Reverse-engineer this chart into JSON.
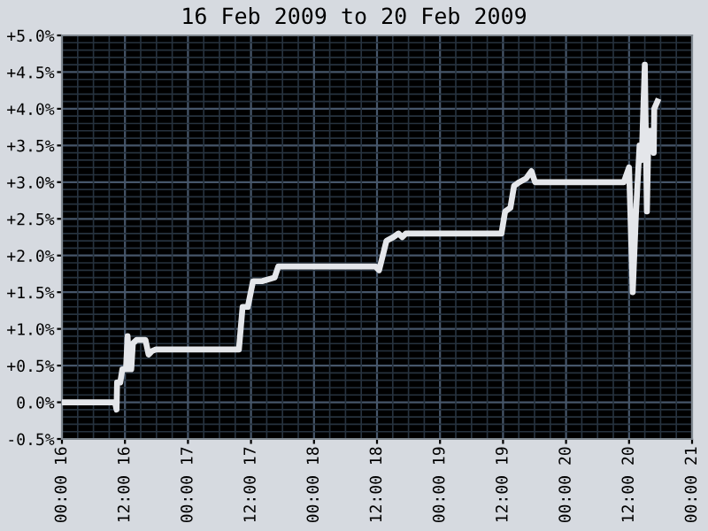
{
  "chart_data": {
    "type": "line",
    "title": "16 Feb 2009 to 20 Feb 2009",
    "x": [
      "2009-02-16T00:00",
      "2009-02-16T10:06",
      "2009-02-16T10:24",
      "2009-02-16T10:30",
      "2009-02-16T11:06",
      "2009-02-16T11:30",
      "2009-02-16T12:12",
      "2009-02-16T12:30",
      "2009-02-16T12:48",
      "2009-02-16T13:12",
      "2009-02-16T13:30",
      "2009-02-16T14:12",
      "2009-02-16T15:54",
      "2009-02-16T16:30",
      "2009-02-16T17:12",
      "2009-02-16T17:54",
      "2009-02-17T09:42",
      "2009-02-17T10:24",
      "2009-02-17T11:24",
      "2009-02-17T12:06",
      "2009-02-17T12:24",
      "2009-02-17T14:06",
      "2009-02-17T16:30",
      "2009-02-17T17:12",
      "2009-02-18T11:42",
      "2009-02-18T12:24",
      "2009-02-18T13:06",
      "2009-02-18T13:48",
      "2009-02-18T15:06",
      "2009-02-18T16:06",
      "2009-02-18T16:48",
      "2009-02-18T17:30",
      "2009-02-19T11:42",
      "2009-02-19T12:24",
      "2009-02-19T13:24",
      "2009-02-19T14:06",
      "2009-02-19T15:06",
      "2009-02-19T16:24",
      "2009-02-19T17:24",
      "2009-02-19T18:06",
      "2009-02-20T11:00",
      "2009-02-20T12:00",
      "2009-02-20T12:42",
      "2009-02-20T13:18",
      "2009-02-20T14:00",
      "2009-02-20T14:24",
      "2009-02-20T15:00",
      "2009-02-20T15:24",
      "2009-02-20T15:42",
      "2009-02-20T16:24",
      "2009-02-20T16:42",
      "2009-02-20T16:48",
      "2009-02-20T17:24"
    ],
    "series": [
      {
        "color": "#e4e6ea",
        "values": [
          0.0,
          0.0,
          -0.1,
          0.27,
          0.27,
          0.45,
          0.45,
          0.9,
          0.45,
          0.45,
          0.8,
          0.85,
          0.85,
          0.65,
          0.7,
          0.72,
          0.72,
          1.3,
          1.3,
          1.55,
          1.65,
          1.65,
          1.7,
          1.85,
          1.85,
          1.8,
          2.0,
          2.2,
          2.25,
          2.3,
          2.25,
          2.3,
          2.3,
          2.6,
          2.65,
          2.95,
          3.0,
          3.05,
          3.15,
          3.0,
          3.0,
          3.2,
          1.5,
          2.55,
          3.5,
          3.3,
          4.6,
          2.6,
          3.7,
          3.7,
          3.4,
          4.0,
          4.1
        ]
      }
    ],
    "xlim": [
      "2009-02-16T00:00",
      "2009-02-21T00:00"
    ],
    "xticks": [
      {
        "value": "2009-02-16T00:00",
        "label": "00:00 16"
      },
      {
        "value": "2009-02-16T12:00",
        "label": "12:00 16"
      },
      {
        "value": "2009-02-17T00:00",
        "label": "00:00 17"
      },
      {
        "value": "2009-02-17T12:00",
        "label": "12:00 17"
      },
      {
        "value": "2009-02-18T00:00",
        "label": "00:00 18"
      },
      {
        "value": "2009-02-18T12:00",
        "label": "12:00 18"
      },
      {
        "value": "2009-02-19T00:00",
        "label": "00:00 19"
      },
      {
        "value": "2009-02-19T12:00",
        "label": "12:00 19"
      },
      {
        "value": "2009-02-20T00:00",
        "label": "00:00 20"
      },
      {
        "value": "2009-02-20T12:00",
        "label": "12:00 20"
      },
      {
        "value": "2009-02-21T00:00",
        "label": "00:00 21"
      }
    ],
    "ylim": [
      -0.5,
      5.0
    ],
    "yticks": [
      {
        "value": -0.5,
        "label": "-0.5%"
      },
      {
        "value": 0,
        "label": "0.0%"
      },
      {
        "value": 0.5,
        "label": "+0.5%"
      },
      {
        "value": 1,
        "label": "+1.0%"
      },
      {
        "value": 1.5,
        "label": "+1.5%"
      },
      {
        "value": 2,
        "label": "+2.0%"
      },
      {
        "value": 2.5,
        "label": "+2.5%"
      },
      {
        "value": 3,
        "label": "+3.0%"
      },
      {
        "value": 3.5,
        "label": "+3.5%"
      },
      {
        "value": 4,
        "label": "+4.0%"
      },
      {
        "value": 4.5,
        "label": "+4.5%"
      },
      {
        "value": 5,
        "label": "+5.0%"
      }
    ],
    "grid": true,
    "marker": "none",
    "line_style": "solid"
  }
}
